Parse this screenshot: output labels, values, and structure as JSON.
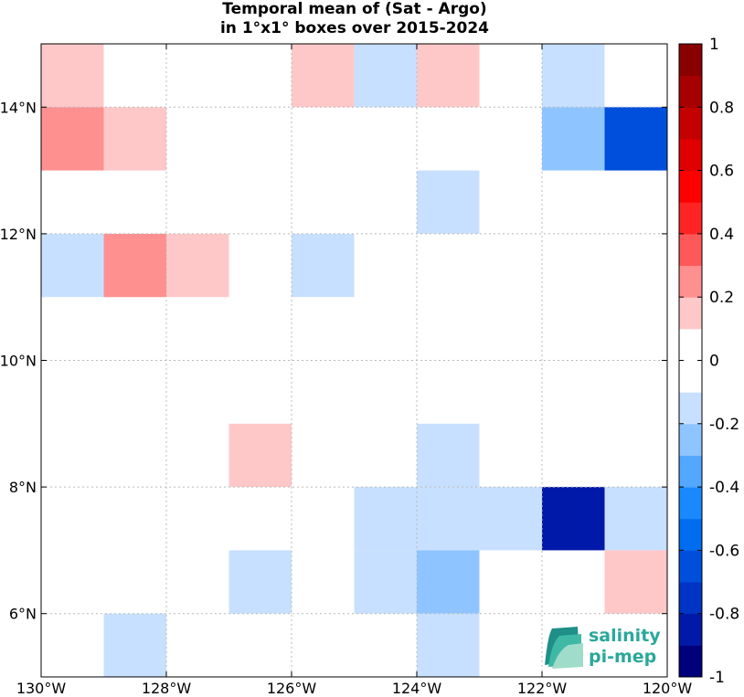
{
  "chart_data": {
    "type": "heatmap",
    "title_lines": [
      "Temporal mean of (Sat - Argo)",
      "in 1°x1° boxes over 2015-2024"
    ],
    "xlim": [
      -130,
      -120
    ],
    "ylim": [
      5,
      15
    ],
    "x_ticks": [
      {
        "v": -130,
        "label": "130°W"
      },
      {
        "v": -128,
        "label": "128°W"
      },
      {
        "v": -126,
        "label": "126°W"
      },
      {
        "v": -124,
        "label": "124°W"
      },
      {
        "v": -122,
        "label": "122°W"
      },
      {
        "v": -120,
        "label": "120°W"
      }
    ],
    "y_ticks": [
      {
        "v": 6,
        "label": "6°N"
      },
      {
        "v": 8,
        "label": "8°N"
      },
      {
        "v": 10,
        "label": "10°N"
      },
      {
        "v": 12,
        "label": "12°N"
      },
      {
        "v": 14,
        "label": "14°N"
      }
    ],
    "grid": true,
    "colorbar": {
      "range": [
        -1,
        1
      ],
      "ticks": [
        1,
        0.8,
        0.6,
        0.4,
        0.2,
        0,
        -0.2,
        -0.4,
        -0.6,
        -0.8,
        -1
      ],
      "tick_labels": [
        "1",
        "0.8",
        "0.6",
        "0.4",
        "0.2",
        "0",
        "-0.2",
        "-0.4",
        "-0.6",
        "-0.8",
        "-1"
      ],
      "colors_low_to_high": [
        "#00007a",
        "#0019a8",
        "#0034c4",
        "#004fdc",
        "#006cf0",
        "#1a88ff",
        "#54a7ff",
        "#8ec4ff",
        "#c8e0ff",
        "#ffffff",
        "#ffffff",
        "#ffc8c8",
        "#ff9090",
        "#ff5858",
        "#ff2424",
        "#ff0000",
        "#e00000",
        "#c40000",
        "#a60000",
        "#880000"
      ]
    },
    "cells": [
      {
        "lon": -130,
        "lat": 14,
        "value": 0.15
      },
      {
        "lon": -126,
        "lat": 14,
        "value": 0.15
      },
      {
        "lon": -125,
        "lat": 14,
        "value": -0.15
      },
      {
        "lon": -124,
        "lat": 14,
        "value": 0.15
      },
      {
        "lon": -122,
        "lat": 14,
        "value": -0.15
      },
      {
        "lon": -130,
        "lat": 13,
        "value": 0.25
      },
      {
        "lon": -129,
        "lat": 13,
        "value": 0.15
      },
      {
        "lon": -122,
        "lat": 13,
        "value": -0.25
      },
      {
        "lon": -121,
        "lat": 13,
        "value": -0.65
      },
      {
        "lon": -124,
        "lat": 12,
        "value": -0.15
      },
      {
        "lon": -130,
        "lat": 11,
        "value": -0.15
      },
      {
        "lon": -129,
        "lat": 11,
        "value": 0.25
      },
      {
        "lon": -128,
        "lat": 11,
        "value": 0.15
      },
      {
        "lon": -126,
        "lat": 11,
        "value": -0.15
      },
      {
        "lon": -127,
        "lat": 8,
        "value": 0.15
      },
      {
        "lon": -124,
        "lat": 8,
        "value": -0.15
      },
      {
        "lon": -125,
        "lat": 7,
        "value": -0.15
      },
      {
        "lon": -124,
        "lat": 7,
        "value": -0.15
      },
      {
        "lon": -123,
        "lat": 7,
        "value": -0.15
      },
      {
        "lon": -122,
        "lat": 7,
        "value": -0.85
      },
      {
        "lon": -121,
        "lat": 7,
        "value": -0.15
      },
      {
        "lon": -127,
        "lat": 6,
        "value": -0.15
      },
      {
        "lon": -125,
        "lat": 6,
        "value": -0.15
      },
      {
        "lon": -124,
        "lat": 6,
        "value": -0.25
      },
      {
        "lon": -121,
        "lat": 6,
        "value": 0.15
      },
      {
        "lon": -129,
        "lat": 5,
        "value": -0.15
      },
      {
        "lon": -124,
        "lat": 5,
        "value": -0.15
      }
    ]
  },
  "logo": {
    "line1": "salinity",
    "line2": "pi-mep"
  }
}
